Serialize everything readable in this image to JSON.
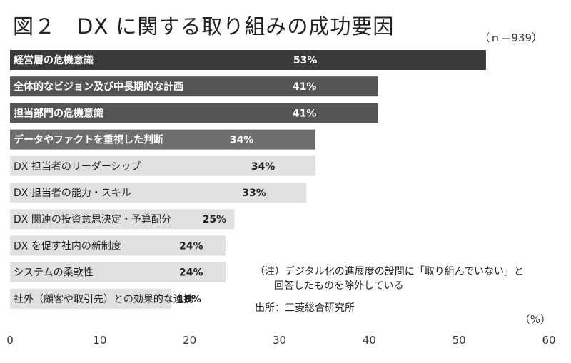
{
  "chart_data": {
    "type": "bar",
    "orientation": "horizontal",
    "title": "図２　DX に関する取り組みの成功要因",
    "sample_size": "（ｎ＝939）",
    "unit": "（%）",
    "categories": [
      "経営層の危機意識",
      "全体的なビジョン及び中長期的な計画",
      "担当部門の危機意識",
      "データやファクトを重視した判断",
      "DX 担当者のリーダーシップ",
      "DX 担当者の能力・スキル",
      "DX 関連の投資意思決定・予算配分",
      "DX を促す社内の新制度",
      "システムの柔軟性",
      "社外（顧客や取引先）との効果的な連携"
    ],
    "values": [
      53,
      41,
      41,
      34,
      34,
      33,
      25,
      24,
      24,
      18
    ],
    "value_labels": [
      "53%",
      "41%",
      "41%",
      "34%",
      "34%",
      "33%",
      "25%",
      "24%",
      "24%",
      "18%"
    ],
    "bar_colors": [
      "#3a3a3a",
      "#555555",
      "#555555",
      "#6e6e6e",
      "#e0e0e0",
      "#e0e0e0",
      "#e0e0e0",
      "#e0e0e0",
      "#e0e0e0",
      "#e0e0e0"
    ],
    "xlim": [
      0,
      60
    ],
    "xticks": [
      0,
      10,
      20,
      30,
      40,
      50,
      60
    ],
    "grid": false
  },
  "note": {
    "line1": "（注）デジタル化の進展度の設問に「取り組んでいない」と",
    "line2": "回答したものを除外している"
  },
  "source": "出所：三菱総合研究所"
}
